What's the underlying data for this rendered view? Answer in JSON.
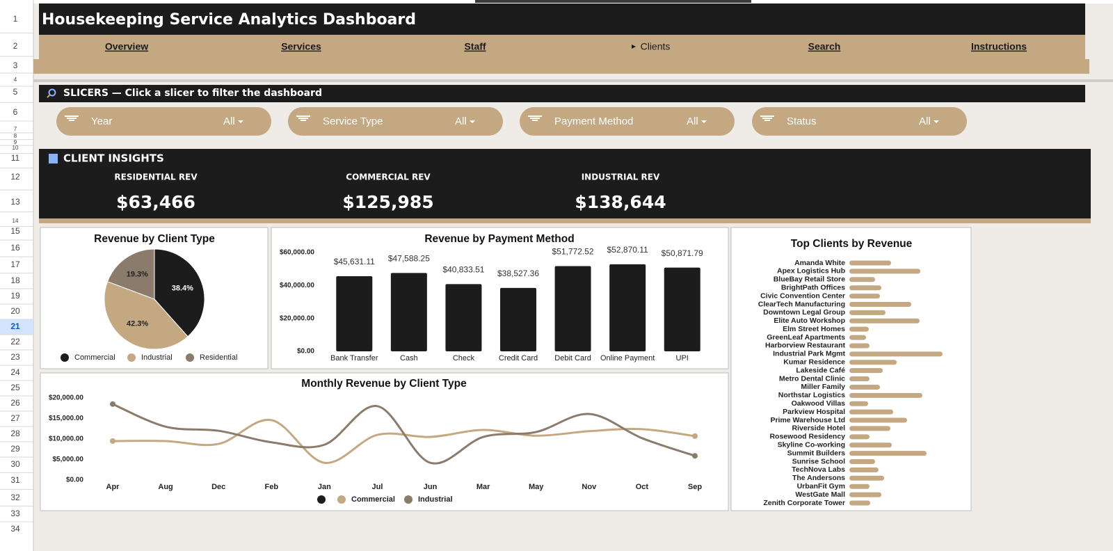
{
  "sheet": {
    "row_numbers": [
      1,
      2,
      3,
      4,
      5,
      6,
      7,
      8,
      9,
      10,
      11,
      12,
      13,
      14,
      15,
      16,
      17,
      18,
      19,
      20,
      21,
      22,
      23,
      24,
      25,
      26,
      27,
      28,
      29,
      30,
      31,
      32,
      33,
      34
    ]
  },
  "header": {
    "title": "Housekeeping Service Analytics Dashboard",
    "nav": [
      "Overview",
      "Services",
      "Staff",
      "Clients",
      "Search",
      "Instructions"
    ]
  },
  "slicers": {
    "title": "SLICERS — Click a slicer to filter the dashboard",
    "items": [
      {
        "label": "Year",
        "value": "All"
      },
      {
        "label": "Service Type",
        "value": "All"
      },
      {
        "label": "Payment Method",
        "value": "All"
      },
      {
        "label": "Status",
        "value": "All"
      }
    ]
  },
  "insights": {
    "title": "CLIENT INSIGHTS",
    "kpis": [
      {
        "label": "RESIDENTIAL REV",
        "value": "$63,466"
      },
      {
        "label": "COMMERCIAL REV",
        "value": "$125,985"
      },
      {
        "label": "INDUSTRIAL REV",
        "value": "$138,644"
      }
    ]
  },
  "chart_data": [
    {
      "type": "pie",
      "title": "Revenue by Client Type",
      "categories": [
        "Commercial",
        "Industrial",
        "Residential"
      ],
      "values": [
        38.4,
        42.3,
        19.3
      ],
      "value_labels": [
        "38.4%",
        "42.3%",
        "19.3%"
      ],
      "colors": [
        "#1c1c1c",
        "#c4a882",
        "#8b7b6a"
      ],
      "legend": "bottom"
    },
    {
      "type": "bar",
      "title": "Revenue by Payment Method",
      "categories": [
        "Bank Transfer",
        "Cash",
        "Check",
        "Credit Card",
        "Debit Card",
        "Online Payment",
        "UPI"
      ],
      "values": [
        45631.11,
        47588.25,
        40833.51,
        38527.36,
        51772.52,
        52870.11,
        50871.79
      ],
      "value_labels": [
        "$45,631.11",
        "$47,588.25",
        "$40,833.51",
        "$38,527.36",
        "$51,772.52",
        "$52,870.11",
        "$50,871.79"
      ],
      "color": "#1c1c1c",
      "ylim": [
        0,
        60000
      ],
      "yticks": [
        {
          "value": 0,
          "label": "$0.00"
        },
        {
          "value": 20000,
          "label": "$20,000.00"
        },
        {
          "value": 40000,
          "label": "$40,000.00"
        },
        {
          "value": 60000,
          "label": "$60,000.00"
        }
      ],
      "grid": false
    },
    {
      "type": "line",
      "title": "Monthly Revenue by Client Type",
      "categories": [
        "Apr",
        "Aug",
        "Dec",
        "Feb",
        "Jan",
        "Jul",
        "Jun",
        "Mar",
        "May",
        "Nov",
        "Oct",
        "Sep"
      ],
      "series": [
        {
          "name": "Commercial",
          "color": "#c4a882",
          "values": [
            9500,
            9500,
            8800,
            14600,
            4200,
            11000,
            10500,
            12200,
            10800,
            11900,
            12400,
            10700
          ]
        },
        {
          "name": "Industrial",
          "color": "#8b7b6a",
          "values": [
            18500,
            13000,
            12000,
            9200,
            8600,
            18000,
            4200,
            10500,
            11700,
            16100,
            10200,
            5900
          ]
        }
      ],
      "ylim": [
        0,
        20000
      ],
      "yticks": [
        {
          "value": 0,
          "label": "$0.00"
        },
        {
          "value": 5000,
          "label": "$5,000.00"
        },
        {
          "value": 10000,
          "label": "$10,000.00"
        },
        {
          "value": 15000,
          "label": "$15,000.00"
        },
        {
          "value": 20000,
          "label": "$20,000.00"
        }
      ],
      "smooth": true,
      "grid": false,
      "legend": "bottom"
    },
    {
      "type": "barh",
      "title": "Top Clients by Revenue",
      "categories": [
        "Amanda White",
        "Apex Logistics Hub",
        "BlueBay Retail Store",
        "BrightPath Offices",
        "Civic Convention Center",
        "ClearTech Manufacturing",
        "Downtown Legal Group",
        "Elite Auto Workshop",
        "Elm Street Homes",
        "GreenLeaf Apartments",
        "Harborview Restaurant",
        "Industrial Park Mgmt",
        "Kumar Residence",
        "Lakeside Café",
        "Metro Dental Clinic",
        "Miller Family",
        "Northstar Logistics",
        "Oakwood Villas",
        "Parkview Hospital",
        "Prime Warehouse Ltd",
        "Riverside Hotel",
        "Rosewood Residency",
        "Skyline Co-working",
        "Summit Builders",
        "Sunrise School",
        "TechNova Labs",
        "The Andersons",
        "UrbanFit Gym",
        "WestGate Mall",
        "Zenith Corporate Tower"
      ],
      "values": [
        15000,
        25500,
        9250,
        11500,
        11000,
        22250,
        13000,
        25250,
        7000,
        6000,
        7250,
        33500,
        17000,
        12000,
        7250,
        11000,
        26250,
        6750,
        15750,
        20750,
        14750,
        7250,
        15250,
        27750,
        9250,
        10500,
        12500,
        7250,
        11500,
        7500
      ],
      "color": "#c4a882"
    }
  ]
}
